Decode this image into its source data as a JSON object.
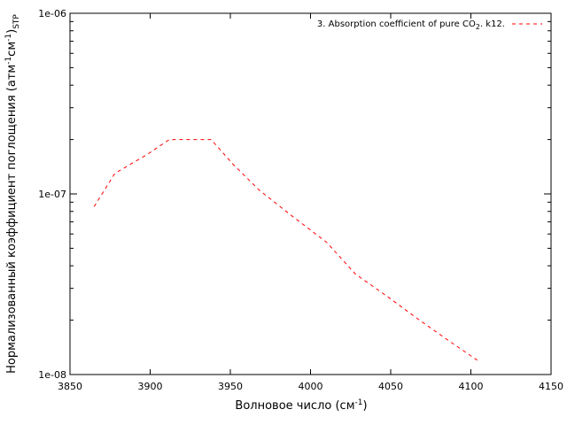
{
  "chart_data": {
    "type": "line",
    "title": "",
    "xlabel": {
      "main": "Волновое число (см",
      "sup": "-1",
      "tail": ")"
    },
    "ylabel": {
      "part1": "Нормализованный коэффициент поглощения (атм",
      "sup1": "-1",
      "part2": "см",
      "sup2": "-1",
      "part3": ")",
      "sub": "STP"
    },
    "xlim": [
      3850,
      4150
    ],
    "ylim": [
      1e-08,
      1e-06
    ],
    "yscale": "log",
    "x_ticks": [
      3850,
      3900,
      3950,
      4000,
      4050,
      4100,
      4150
    ],
    "x_tick_labels": [
      "3850",
      "3900",
      "3950",
      "4000",
      "4050",
      "4100",
      "4150"
    ],
    "y_ticks": [
      1e-08,
      1e-07,
      1e-06
    ],
    "y_tick_labels": [
      "1e-08",
      "1e-07",
      "1e-06"
    ],
    "grid": false,
    "legend_position": "top-right",
    "series": [
      {
        "name_parts": [
          "3. Absorption coefficient of pure CO",
          "2",
          ". k12."
        ],
        "color": "#ff0000",
        "dash": true,
        "x": [
          3865,
          3878,
          3898,
          3912,
          3925,
          3938,
          3952,
          3968,
          3988,
          4010,
          4028,
          4048,
          4068,
          4088,
          4104
        ],
        "y": [
          8.5e-08,
          1.3e-07,
          1.65e-07,
          2e-07,
          2e-07,
          2e-07,
          1.45e-07,
          1.05e-07,
          7.6e-08,
          5.4e-08,
          3.6e-08,
          2.7e-08,
          2e-08,
          1.5e-08,
          1.2e-08
        ]
      }
    ]
  }
}
